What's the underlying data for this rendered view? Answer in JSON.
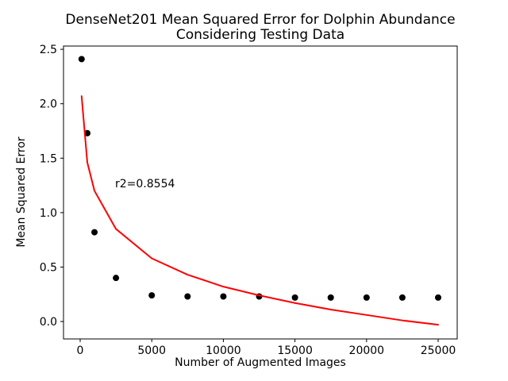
{
  "figure": {
    "title_line1": "DenseNet201 Mean Squared Error for Dolphin Abundance",
    "title_line2": "Considering Testing Data"
  },
  "chart_data": {
    "type": "scatter",
    "title": "DenseNet201 Mean Squared Error for Dolphin Abundance\nConsidering Testing Data",
    "xlabel": "Number of Augmented Images",
    "ylabel": "Mean Squared Error",
    "annotation": {
      "text": "r2=0.8554",
      "x": 2400,
      "y": 1.26
    },
    "xlim": [
      -1164,
      26330
    ],
    "ylim": [
      -0.16,
      2.53
    ],
    "x_ticks": [
      0,
      5000,
      10000,
      15000,
      20000,
      25000
    ],
    "x_tick_labels": [
      "0",
      "5000",
      "10000",
      "15000",
      "20000",
      "25000"
    ],
    "y_ticks": [
      0.0,
      0.5,
      1.0,
      1.5,
      2.0,
      2.5
    ],
    "y_tick_labels": [
      "0.0",
      "0.5",
      "1.0",
      "1.5",
      "2.0",
      "2.5"
    ],
    "grid": false,
    "legend_position": "none",
    "colors": {
      "scatter": "#000000",
      "fit_line": "#ff0000",
      "axes": "#000000",
      "background": "#ffffff"
    },
    "series": [
      {
        "name": "observed-mse-points",
        "type": "scatter",
        "color": "#000000",
        "marker_radius": 4,
        "x": [
          100,
          500,
          1000,
          2500,
          5000,
          7500,
          10000,
          12500,
          15000,
          17500,
          20000,
          22500,
          25000
        ],
        "y": [
          2.41,
          1.73,
          0.82,
          0.4,
          0.24,
          0.23,
          0.23,
          0.23,
          0.22,
          0.22,
          0.22,
          0.22,
          0.22
        ]
      },
      {
        "name": "log-fit-curve",
        "type": "line",
        "color": "#ff0000",
        "line_width": 2,
        "x": [
          100,
          500,
          1000,
          2500,
          5000,
          7500,
          10000,
          12500,
          15000,
          17500,
          20000,
          22500,
          25000
        ],
        "y": [
          2.07,
          1.46,
          1.2,
          0.85,
          0.58,
          0.43,
          0.32,
          0.24,
          0.17,
          0.11,
          0.06,
          0.01,
          -0.03
        ]
      }
    ]
  }
}
